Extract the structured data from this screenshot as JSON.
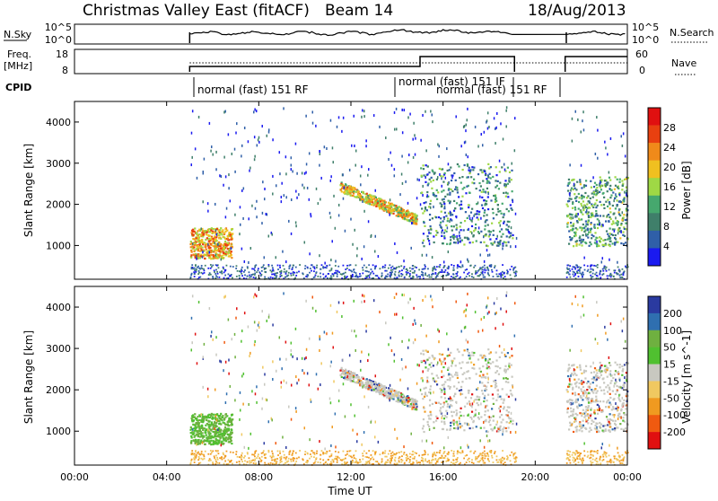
{
  "header": {
    "title": "Christmas Valley East (fitACF)",
    "beam": "Beam 14",
    "date": "18/Aug/2013"
  },
  "nsky_panel": {
    "left_label": "N.Sky",
    "left_ticks": [
      "10^5",
      "10^0"
    ],
    "right_ticks": [
      "10^5",
      "10^0"
    ],
    "right_label": "N.Search"
  },
  "freq_panel": {
    "left_label_1": "Freq.",
    "left_label_2": "[MHz]",
    "left_ticks": [
      "18",
      "8"
    ],
    "right_ticks": [
      "60",
      "0"
    ],
    "right_label": "Nave"
  },
  "cpid_panel": {
    "label": "CPID",
    "entries": [
      "normal (fast) 151 RF",
      "normal (fast) 151 IF",
      "normal (fast) 151 RF"
    ]
  },
  "colors": {
    "power_scale": [
      "#1a1af0",
      "#2f5fa8",
      "#3f7f6a",
      "#46a86e",
      "#9fd845",
      "#f0c020",
      "#f08a1a",
      "#e84010",
      "#e01010"
    ],
    "velocity_scale": [
      "#e01010",
      "#f05a10",
      "#f09a20",
      "#f0c860",
      "#c8c8c0",
      "#50c030",
      "#6fb040",
      "#2f6fb0",
      "#2a3aa0"
    ]
  },
  "chart_data": [
    {
      "type": "heatmap",
      "name": "power",
      "ylabel": "Slant Range [km]",
      "xlim": [
        "00:00",
        "24:00"
      ],
      "ylim": [
        180,
        4500
      ],
      "yticks": [
        "1000",
        "2000",
        "3000",
        "4000"
      ],
      "colorbar": {
        "label": "Power [dB]",
        "ticks": [
          "4",
          "8",
          "12",
          "16",
          "20",
          "24",
          "28"
        ]
      },
      "data_gaps_ut": [
        [
          "00:00",
          "05:00"
        ],
        [
          "19:10",
          "21:20"
        ]
      ],
      "scatter_features": [
        {
          "desc": "strong near-range echo band",
          "ut_start": "05:00",
          "ut_end": "06:50",
          "range_km": [
            700,
            1450
          ],
          "power_db": 28
        },
        {
          "desc": "descending echo band",
          "ut_start": "11:30",
          "ut_end": "14:50",
          "range_km": [
            1500,
            2500
          ],
          "power_db": 26
        },
        {
          "desc": "far-range echoes",
          "ut_start": "15:00",
          "ut_end": "19:00",
          "range_km": [
            1000,
            3000
          ],
          "power_db": 16
        },
        {
          "desc": "post-gap echoes",
          "ut_start": "21:20",
          "ut_end": "24:00",
          "range_km": [
            1000,
            2700
          ],
          "power_db": 18
        }
      ]
    },
    {
      "type": "heatmap",
      "name": "velocity",
      "ylabel": "Slant Range [km]",
      "xlabel": "Time UT",
      "xticks": [
        "00:00",
        "04:00",
        "08:00",
        "12:00",
        "16:00",
        "20:00",
        "00:00"
      ],
      "ylim": [
        180,
        4500
      ],
      "yticks": [
        "1000",
        "2000",
        "3000",
        "4000"
      ],
      "colorbar": {
        "label": "Velocity [m s^-1]",
        "ticks": [
          "200",
          "100",
          "50",
          "15",
          "-15",
          "-50",
          "-100",
          "-200"
        ]
      }
    }
  ]
}
